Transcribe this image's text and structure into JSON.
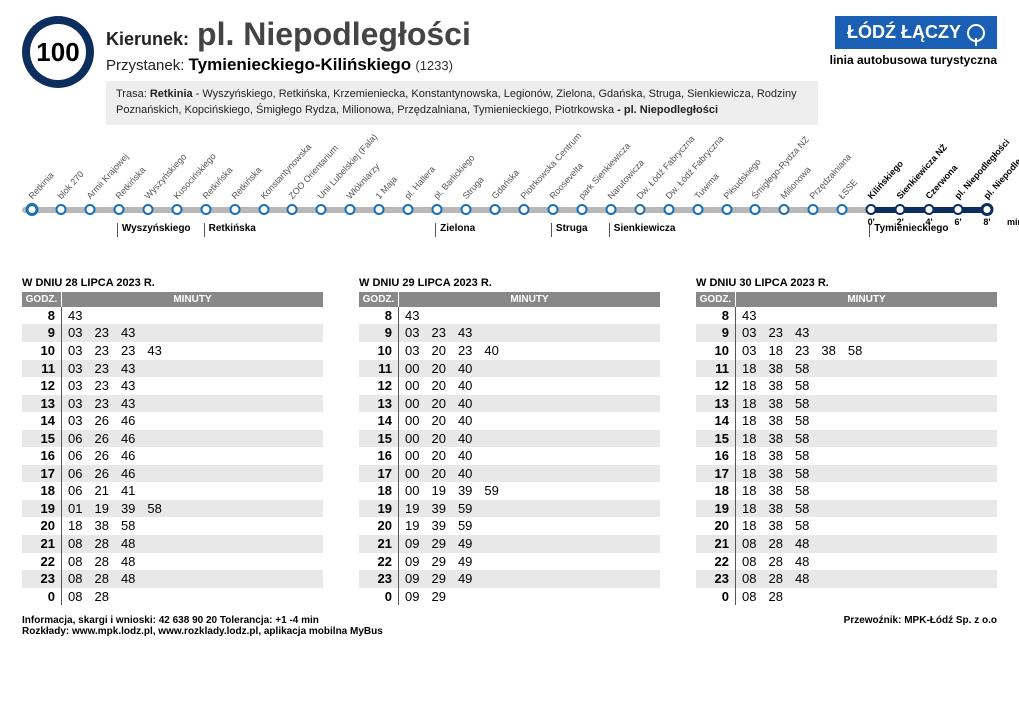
{
  "line_number": "100",
  "direction_label": "Kierunek:",
  "direction_name": "pl. Niepodległości",
  "stop_label": "Przystanek:",
  "stop_name": "Tymienieckiego-Kilińskiego",
  "stop_id": "(1233)",
  "brand_text": "ŁÓDŹ ŁĄCZY",
  "brand_sub": "linia autobusowa turystyczna",
  "route_label": "Trasa:",
  "route_start": "Retkinia",
  "route_text": " - Wyszyńskiego, Retkińska, Krzemieniecka, Konstantynowska, Legionów, Zielona, Gdańska, Struga, Sienkiewicza, Rodziny Poznańskich, Kopcińskiego, Śmigłego Rydza, Milionowa, Przędzalniana, Tymienieckiego, Piotrkowska ",
  "route_end": "- pl. Niepodległości",
  "diagram": {
    "track_color": "#b8b8b8",
    "bold_color": "#0b2e5c",
    "stops": [
      {
        "label": "Retkinia",
        "terminal": true
      },
      {
        "label": "blok 270"
      },
      {
        "label": "Armii Krajowej"
      },
      {
        "label": "Retkińska"
      },
      {
        "label": "Wyszyńskiego"
      },
      {
        "label": "Kusocińskiego"
      },
      {
        "label": "Retkińska"
      },
      {
        "label": "Retkińska"
      },
      {
        "label": "Konstantynowska"
      },
      {
        "label": "ZOO Orientarium"
      },
      {
        "label": "Unii Lubelskiej (Fala)"
      },
      {
        "label": "Włókniarzy"
      },
      {
        "label": "1 Maja"
      },
      {
        "label": "pl. Hallera"
      },
      {
        "label": "pl. Barlickiego"
      },
      {
        "label": "Struga"
      },
      {
        "label": "Gdańska"
      },
      {
        "label": "Piotrkowska Centrum"
      },
      {
        "label": "Roosevelta"
      },
      {
        "label": "park Sienkiewicza"
      },
      {
        "label": "Narutowicza"
      },
      {
        "label": "Dw. Łódź Fabryczna"
      },
      {
        "label": "Dw. Łódź Fabryczna"
      },
      {
        "label": "Tuwima"
      },
      {
        "label": "Piłsudskiego"
      },
      {
        "label": "Śmigłego-Rydza NŻ"
      },
      {
        "label": "Milionowa"
      },
      {
        "label": "Przędzalniana"
      },
      {
        "label": "ŁSSE"
      },
      {
        "label": "Kilińskiego",
        "bold": true,
        "tick": "0'"
      },
      {
        "label": "Sienkiewicza NŻ",
        "bold": true,
        "tick": "2'"
      },
      {
        "label": "Czerwona",
        "bold": true,
        "tick": "4'"
      },
      {
        "label": "pl. Niepodległości",
        "bold": true,
        "tick": "6'"
      },
      {
        "label": "pl. Niepodległości",
        "bold": true,
        "terminal": true,
        "tick": "8'"
      }
    ],
    "tick_unit": "min",
    "under_labels": [
      {
        "text": "Wyszyńskiego",
        "at": 3
      },
      {
        "text": "Retkińska",
        "at": 6
      },
      {
        "text": "Zielona",
        "at": 14
      },
      {
        "text": "Struga",
        "at": 18
      },
      {
        "text": "Sienkiewicza",
        "at": 20
      },
      {
        "text": "Tymienieckiego",
        "at": 29
      }
    ]
  },
  "timetables": [
    {
      "title": "W DNIU 28 LIPCA 2023 R.",
      "head_hour": "GODZ.",
      "head_min": "MINUTY",
      "rows": [
        {
          "h": "8",
          "m": [
            "43"
          ]
        },
        {
          "h": "9",
          "m": [
            "03",
            "23",
            "43"
          ]
        },
        {
          "h": "10",
          "m": [
            "03",
            "23",
            "23",
            "43"
          ]
        },
        {
          "h": "11",
          "m": [
            "03",
            "23",
            "43"
          ]
        },
        {
          "h": "12",
          "m": [
            "03",
            "23",
            "43"
          ]
        },
        {
          "h": "13",
          "m": [
            "03",
            "23",
            "43"
          ]
        },
        {
          "h": "14",
          "m": [
            "03",
            "26",
            "46"
          ]
        },
        {
          "h": "15",
          "m": [
            "06",
            "26",
            "46"
          ]
        },
        {
          "h": "16",
          "m": [
            "06",
            "26",
            "46"
          ]
        },
        {
          "h": "17",
          "m": [
            "06",
            "26",
            "46"
          ]
        },
        {
          "h": "18",
          "m": [
            "06",
            "21",
            "41"
          ]
        },
        {
          "h": "19",
          "m": [
            "01",
            "19",
            "39",
            "58"
          ]
        },
        {
          "h": "20",
          "m": [
            "18",
            "38",
            "58"
          ]
        },
        {
          "h": "21",
          "m": [
            "08",
            "28",
            "48"
          ]
        },
        {
          "h": "22",
          "m": [
            "08",
            "28",
            "48"
          ]
        },
        {
          "h": "23",
          "m": [
            "08",
            "28",
            "48"
          ]
        },
        {
          "h": "0",
          "m": [
            "08",
            "28"
          ]
        }
      ]
    },
    {
      "title": "W DNIU 29 LIPCA 2023 R.",
      "head_hour": "GODZ.",
      "head_min": "MINUTY",
      "rows": [
        {
          "h": "8",
          "m": [
            "43"
          ]
        },
        {
          "h": "9",
          "m": [
            "03",
            "23",
            "43"
          ]
        },
        {
          "h": "10",
          "m": [
            "03",
            "20",
            "23",
            "40"
          ]
        },
        {
          "h": "11",
          "m": [
            "00",
            "20",
            "40"
          ]
        },
        {
          "h": "12",
          "m": [
            "00",
            "20",
            "40"
          ]
        },
        {
          "h": "13",
          "m": [
            "00",
            "20",
            "40"
          ]
        },
        {
          "h": "14",
          "m": [
            "00",
            "20",
            "40"
          ]
        },
        {
          "h": "15",
          "m": [
            "00",
            "20",
            "40"
          ]
        },
        {
          "h": "16",
          "m": [
            "00",
            "20",
            "40"
          ]
        },
        {
          "h": "17",
          "m": [
            "00",
            "20",
            "40"
          ]
        },
        {
          "h": "18",
          "m": [
            "00",
            "19",
            "39",
            "59"
          ]
        },
        {
          "h": "19",
          "m": [
            "19",
            "39",
            "59"
          ]
        },
        {
          "h": "20",
          "m": [
            "19",
            "39",
            "59"
          ]
        },
        {
          "h": "21",
          "m": [
            "09",
            "29",
            "49"
          ]
        },
        {
          "h": "22",
          "m": [
            "09",
            "29",
            "49"
          ]
        },
        {
          "h": "23",
          "m": [
            "09",
            "29",
            "49"
          ]
        },
        {
          "h": "0",
          "m": [
            "09",
            "29"
          ]
        }
      ]
    },
    {
      "title": "W DNIU 30 LIPCA 2023 R.",
      "head_hour": "GODZ.",
      "head_min": "MINUTY",
      "rows": [
        {
          "h": "8",
          "m": [
            "43"
          ]
        },
        {
          "h": "9",
          "m": [
            "03",
            "23",
            "43"
          ]
        },
        {
          "h": "10",
          "m": [
            "03",
            "18",
            "23",
            "38",
            "58"
          ]
        },
        {
          "h": "11",
          "m": [
            "18",
            "38",
            "58"
          ]
        },
        {
          "h": "12",
          "m": [
            "18",
            "38",
            "58"
          ]
        },
        {
          "h": "13",
          "m": [
            "18",
            "38",
            "58"
          ]
        },
        {
          "h": "14",
          "m": [
            "18",
            "38",
            "58"
          ]
        },
        {
          "h": "15",
          "m": [
            "18",
            "38",
            "58"
          ]
        },
        {
          "h": "16",
          "m": [
            "18",
            "38",
            "58"
          ]
        },
        {
          "h": "17",
          "m": [
            "18",
            "38",
            "58"
          ]
        },
        {
          "h": "18",
          "m": [
            "18",
            "38",
            "58"
          ]
        },
        {
          "h": "19",
          "m": [
            "18",
            "38",
            "58"
          ]
        },
        {
          "h": "20",
          "m": [
            "18",
            "38",
            "58"
          ]
        },
        {
          "h": "21",
          "m": [
            "08",
            "28",
            "48"
          ]
        },
        {
          "h": "22",
          "m": [
            "08",
            "28",
            "48"
          ]
        },
        {
          "h": "23",
          "m": [
            "08",
            "28",
            "48"
          ]
        },
        {
          "h": "0",
          "m": [
            "08",
            "28"
          ]
        }
      ]
    }
  ],
  "footer_left_1": "Informacja, skargi i wnioski: 42 638 90 20 Tolerancja: +1 -4 min",
  "footer_left_2": "Rozkłady: www.mpk.lodz.pl, www.rozklady.lodz.pl, aplikacja mobilna MyBus",
  "footer_right": "Przewoźnik: MPK-Łódź Sp. z o.o"
}
